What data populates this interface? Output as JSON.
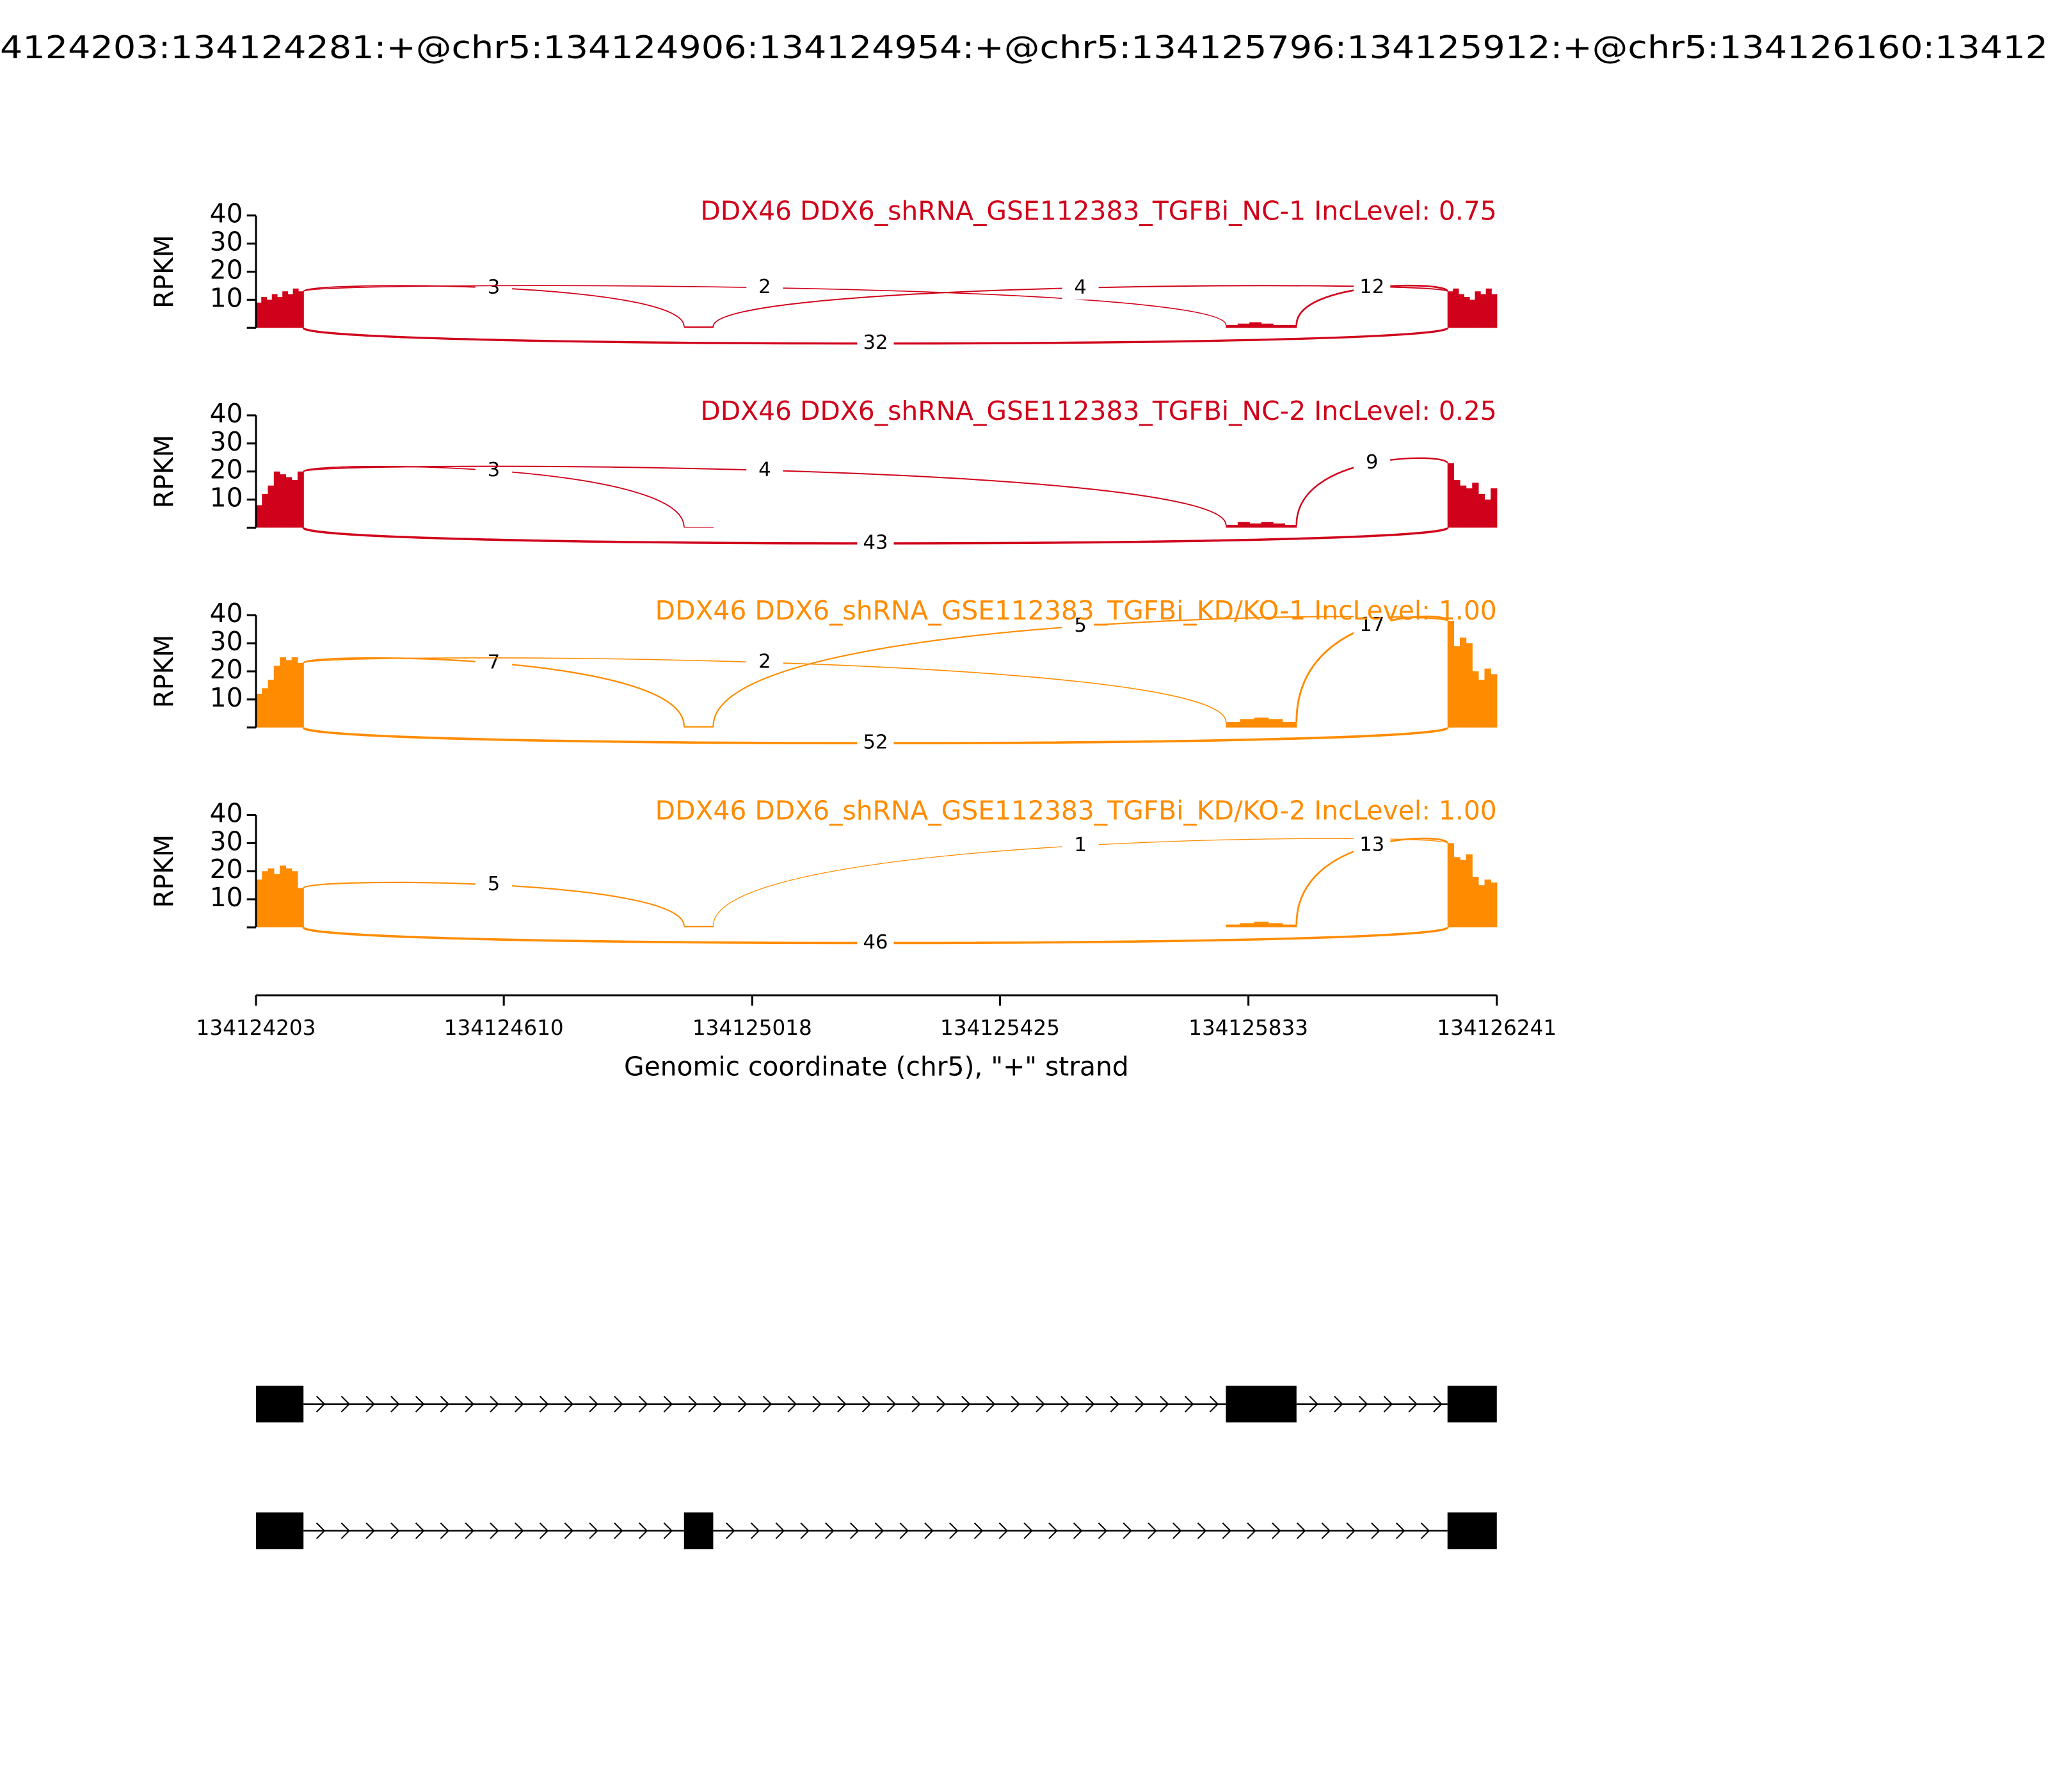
{
  "chart_data": {
    "type": "sashimi",
    "title": "4124203:134124281:+@chr5:134124906:134124954:+@chr5:134125796:134125912:+@chr5:134126160:13412",
    "ylabel": "RPKM",
    "xlabel": "Genomic coordinate (chr5), \"+\" strand",
    "xlim": [
      134124203,
      134126241
    ],
    "xticks": [
      134124203,
      134124610,
      134125018,
      134125425,
      134125833,
      134126241
    ],
    "panels": [
      {
        "title": "DDX46 DDX6_shRNA_GSE112383_TGFBi_NC-1 IncLevel: 0.75",
        "color": "#d0021b",
        "ylim": [
          0,
          40
        ],
        "yticks": [
          10,
          20,
          30,
          40
        ],
        "coverage": [
          {
            "start": 134124203,
            "end": 134124281,
            "values": [
              9,
              11,
              10,
              12,
              11,
              13,
              12,
              14,
              13
            ]
          },
          {
            "start": 134124906,
            "end": 134124954,
            "values": [
              0.5,
              0.5,
              0.5
            ]
          },
          {
            "start": 134125796,
            "end": 134125912,
            "values": [
              1,
              1.5,
              2,
              1.5,
              1,
              1
            ]
          },
          {
            "start": 134126160,
            "end": 134126241,
            "values": [
              13,
              14,
              12,
              11,
              10,
              13,
              12,
              14,
              12
            ]
          }
        ],
        "junctions": [
          {
            "start": 134124281,
            "end": 134124906,
            "count": 3,
            "side": "above"
          },
          {
            "start": 134124281,
            "end": 134125796,
            "count": 2,
            "side": "above"
          },
          {
            "start": 134124954,
            "end": 134126160,
            "count": 4,
            "side": "above"
          },
          {
            "start": 134125912,
            "end": 134126160,
            "count": 12,
            "side": "above"
          },
          {
            "start": 134124281,
            "end": 134126160,
            "count": 32,
            "side": "below"
          }
        ]
      },
      {
        "title": "DDX46 DDX6_shRNA_GSE112383_TGFBi_NC-2 IncLevel: 0.25",
        "color": "#d0021b",
        "ylim": [
          0,
          40
        ],
        "yticks": [
          10,
          20,
          30,
          40
        ],
        "coverage": [
          {
            "start": 134124203,
            "end": 134124281,
            "values": [
              8,
              12,
              15,
              20,
              19,
              18,
              17,
              20
            ]
          },
          {
            "start": 134124906,
            "end": 134124954,
            "values": [
              0.2,
              0.2,
              0.2
            ]
          },
          {
            "start": 134125796,
            "end": 134125912,
            "values": [
              1,
              2,
              1.5,
              2,
              1.5,
              1
            ]
          },
          {
            "start": 134126160,
            "end": 134126241,
            "values": [
              23,
              17,
              15,
              14,
              16,
              12,
              10,
              14
            ]
          }
        ],
        "junctions": [
          {
            "start": 134124281,
            "end": 134124906,
            "count": 3,
            "side": "above"
          },
          {
            "start": 134124281,
            "end": 134125796,
            "count": 4,
            "side": "above"
          },
          {
            "start": 134125912,
            "end": 134126160,
            "count": 9,
            "side": "above"
          },
          {
            "start": 134124281,
            "end": 134126160,
            "count": 43,
            "side": "below"
          }
        ]
      },
      {
        "title": "DDX46 DDX6_shRNA_GSE112383_TGFBi_KD/KO-1 IncLevel: 1.00",
        "color": "#ff8c00",
        "ylim": [
          0,
          40
        ],
        "yticks": [
          10,
          20,
          30,
          40
        ],
        "coverage": [
          {
            "start": 134124203,
            "end": 134124281,
            "values": [
              12,
              14,
              17,
              22,
              25,
              24,
              25,
              23
            ]
          },
          {
            "start": 134124906,
            "end": 134124954,
            "values": [
              0.5,
              0.5,
              0.5
            ]
          },
          {
            "start": 134125796,
            "end": 134125912,
            "values": [
              2,
              3,
              3.5,
              3,
              2
            ]
          },
          {
            "start": 134126160,
            "end": 134126241,
            "values": [
              38,
              29,
              32,
              30,
              20,
              17,
              21,
              19
            ]
          }
        ],
        "junctions": [
          {
            "start": 134124281,
            "end": 134124906,
            "count": 7,
            "side": "above"
          },
          {
            "start": 134124281,
            "end": 134125796,
            "count": 2,
            "side": "above"
          },
          {
            "start": 134124954,
            "end": 134126160,
            "count": 5,
            "side": "above"
          },
          {
            "start": 134125912,
            "end": 134126160,
            "count": 17,
            "side": "above"
          },
          {
            "start": 134124281,
            "end": 134126160,
            "count": 52,
            "side": "below"
          }
        ]
      },
      {
        "title": "DDX46 DDX6_shRNA_GSE112383_TGFBi_KD/KO-2 IncLevel: 1.00",
        "color": "#ff8c00",
        "ylim": [
          0,
          40
        ],
        "yticks": [
          10,
          20,
          30,
          40
        ],
        "coverage": [
          {
            "start": 134124203,
            "end": 134124281,
            "values": [
              17,
              20,
              21,
              19,
              22,
              21,
              20,
              14
            ]
          },
          {
            "start": 134124906,
            "end": 134124954,
            "values": [
              0.5,
              0.5,
              0.5
            ]
          },
          {
            "start": 134125796,
            "end": 134125912,
            "values": [
              1,
              1.5,
              2,
              1.5,
              1
            ]
          },
          {
            "start": 134126160,
            "end": 134126241,
            "values": [
              30,
              25,
              24,
              26,
              18,
              15,
              17,
              16
            ]
          }
        ],
        "junctions": [
          {
            "start": 134124281,
            "end": 134124906,
            "count": 5,
            "side": "above"
          },
          {
            "start": 134124954,
            "end": 134126160,
            "count": 1,
            "side": "above"
          },
          {
            "start": 134125912,
            "end": 134126160,
            "count": 13,
            "side": "above"
          },
          {
            "start": 134124281,
            "end": 134126160,
            "count": 46,
            "side": "below"
          }
        ]
      }
    ],
    "transcripts": [
      {
        "exons": [
          [
            134124203,
            134124281
          ],
          [
            134125796,
            134125912
          ],
          [
            134126160,
            134126241
          ]
        ]
      },
      {
        "exons": [
          [
            134124203,
            134124281
          ],
          [
            134124906,
            134124954
          ],
          [
            134126160,
            134126241
          ]
        ]
      }
    ]
  }
}
